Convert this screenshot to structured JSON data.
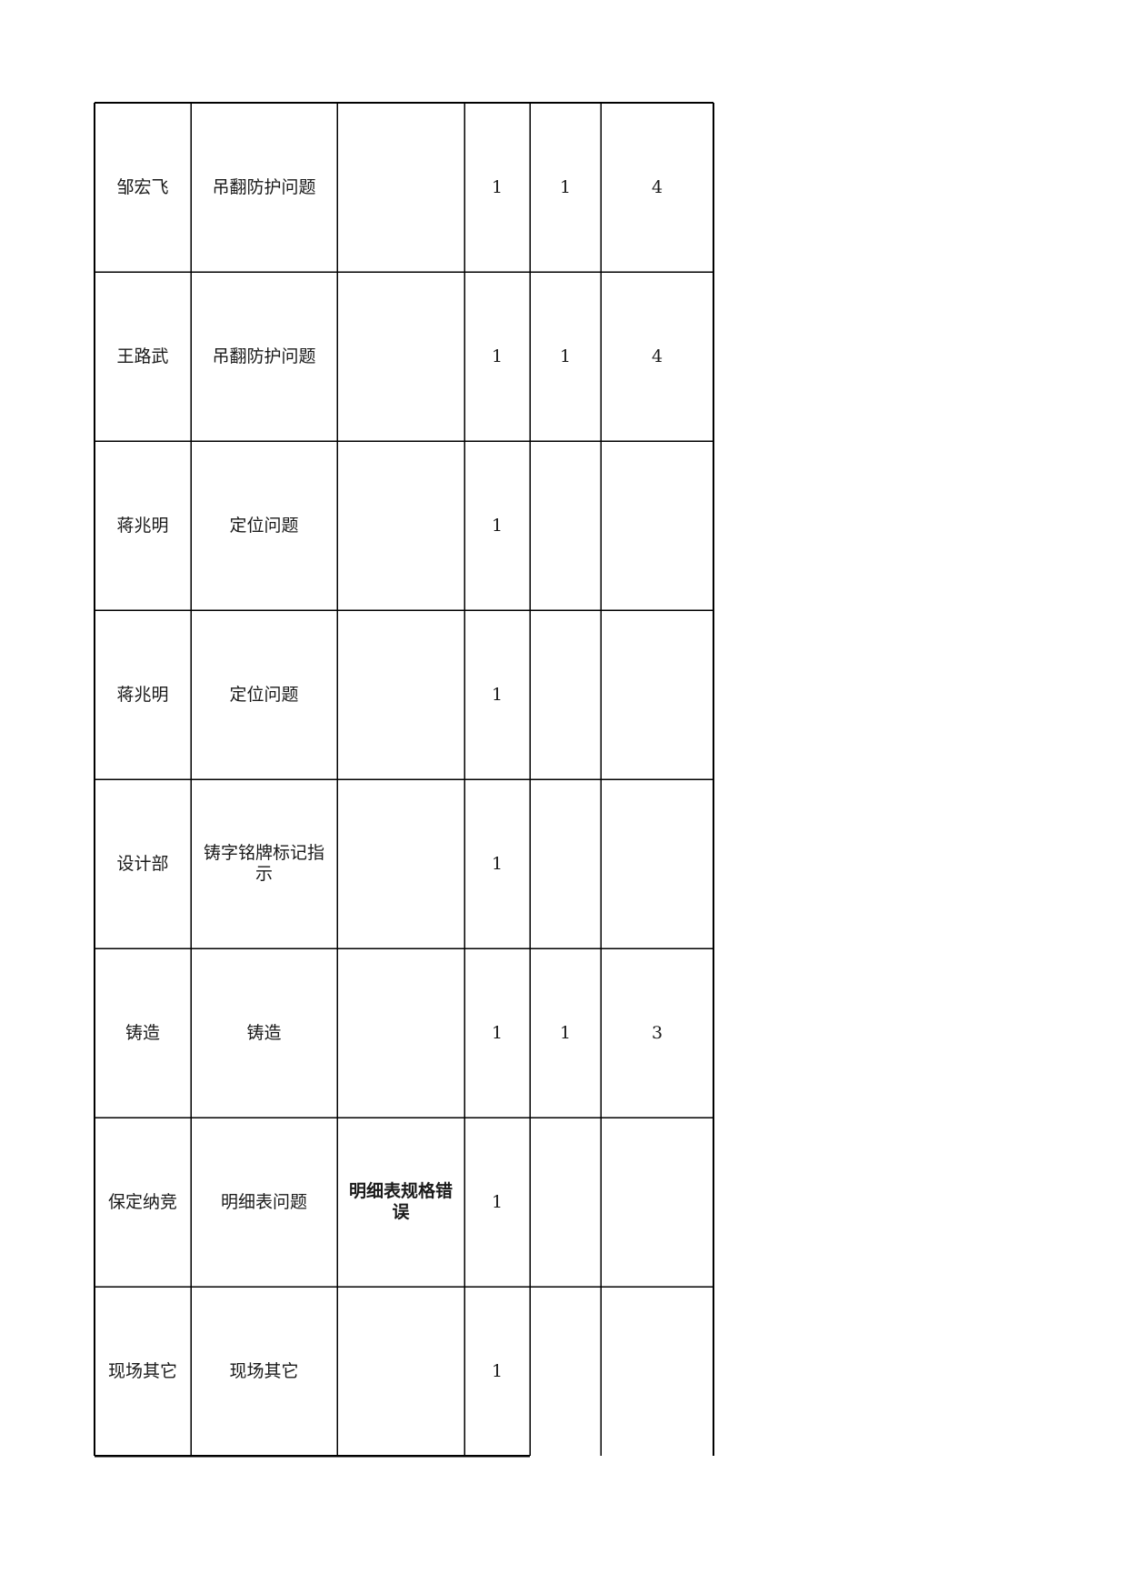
{
  "rows": [
    {
      "name": "邹宏飞",
      "category": "吊翻防护问题",
      "detail": "",
      "c1": "1",
      "c2": "1",
      "c3": "4"
    },
    {
      "name": "王路武",
      "category": "吊翻防护问题",
      "detail": "",
      "c1": "1",
      "c2": "1",
      "c3": "4"
    },
    {
      "name": "蒋兆明",
      "category": "定位问题",
      "detail": "",
      "c1": "1",
      "c2": "",
      "c3": ""
    },
    {
      "name": "蒋兆明",
      "category": "定位问题",
      "detail": "",
      "c1": "1",
      "c2": "",
      "c3": ""
    },
    {
      "name": "设计部",
      "category": "铸字铭牌标记指示",
      "detail": "",
      "c1": "1",
      "c2": "",
      "c3": ""
    },
    {
      "name": "铸造",
      "category": "铸造",
      "detail": "",
      "c1": "1",
      "c2": "1",
      "c3": "3"
    },
    {
      "name": "保定纳竞",
      "category": "明细表问题",
      "detail": "明细表规格错误",
      "c1": "1",
      "c2": "",
      "c3": ""
    },
    {
      "name": "现场其它",
      "category": "现场其它",
      "detail": "",
      "c1": "1",
      "c2": "",
      "c3": ""
    }
  ]
}
